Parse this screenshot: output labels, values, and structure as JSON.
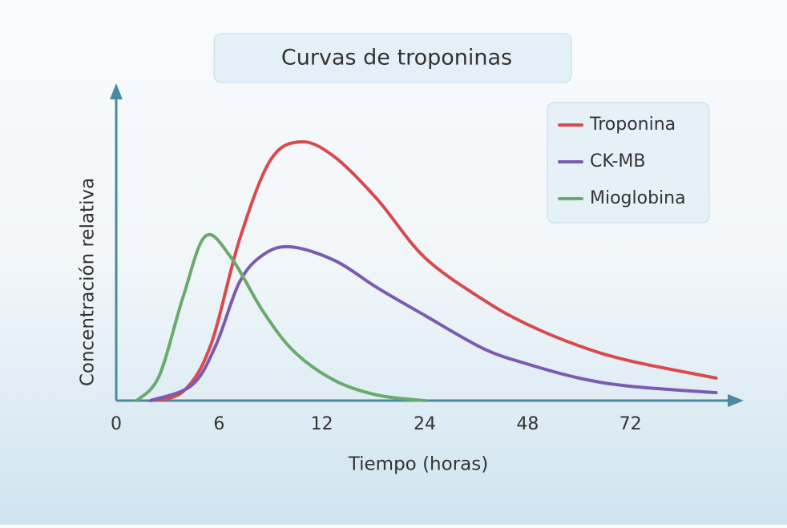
{
  "chart_data": {
    "type": "line",
    "title": "Curvas de troponinas",
    "x_label": "Tiempo (horas)",
    "y_label": "Concentración relativa",
    "xticks": [
      0,
      6,
      12,
      24,
      48,
      72
    ],
    "xlim": [
      0,
      96
    ],
    "ylim": [
      0,
      1
    ],
    "series": [
      {
        "name": "Troponina",
        "color": "#d94a4f",
        "x": [
          2,
          3.9,
          5.5,
          7.2,
          9,
          10.8,
          13.5,
          18.5,
          24,
          37.8,
          48,
          60,
          72,
          92
        ],
        "values": [
          0,
          0.03,
          0.18,
          0.53,
          0.79,
          0.85,
          0.8,
          0.66,
          0.47,
          0.33,
          0.25,
          0.18,
          0.13,
          0.074
        ]
      },
      {
        "name": "CK-MB",
        "color": "#7a5bb0",
        "x": [
          2,
          4.4,
          5.8,
          7.2,
          8.6,
          10.2,
          13.5,
          18.5,
          24,
          37.8,
          48,
          60,
          72,
          92
        ],
        "values": [
          0,
          0.05,
          0.18,
          0.39,
          0.48,
          0.505,
          0.46,
          0.37,
          0.28,
          0.17,
          0.12,
          0.074,
          0.047,
          0.026
        ]
      },
      {
        "name": "Mioglobina",
        "color": "#6aaa6e",
        "x": [
          1.2,
          2.5,
          3.9,
          5.2,
          6.7,
          8.6,
          10.4,
          13.5,
          18.5,
          24
        ],
        "values": [
          0,
          0.08,
          0.34,
          0.54,
          0.47,
          0.29,
          0.16,
          0.066,
          0.018,
          0
        ]
      }
    ]
  }
}
